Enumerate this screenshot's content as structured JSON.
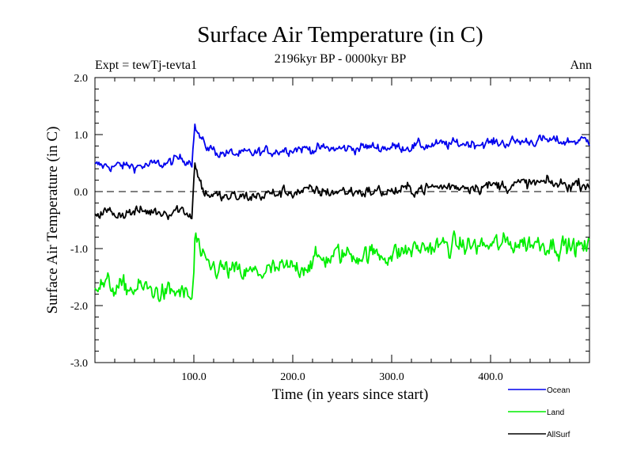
{
  "chart_data": {
    "type": "line",
    "title": "Surface Air Temperature (in C)",
    "subtitle": "2196kyr BP - 0000kyr BP",
    "experiment": "Expt = tewTj-tevta1",
    "period": "Ann",
    "xlabel": "Time (in years since start)",
    "ylabel": "Surface Air Temperature (in C)",
    "xlim": [
      0,
      500
    ],
    "ylim": [
      -3.0,
      2.0
    ],
    "x_ticks": [
      100,
      200,
      300,
      400
    ],
    "x_tick_labels": [
      "100.0",
      "200.0",
      "300.0",
      "400.0"
    ],
    "y_ticks": [
      2.0,
      1.0,
      0.0,
      -1.0,
      -2.0,
      -3.0
    ],
    "y_tick_labels": [
      "2.0",
      "1.0",
      "0.0",
      "-1.0",
      "-2.0",
      "-3.0"
    ],
    "zero_line": 0.0,
    "legend_position": "bottom-right",
    "series": [
      {
        "name": "Ocean",
        "color": "#0000ee",
        "x": [
          0,
          25,
          50,
          75,
          85,
          98,
          100,
          101,
          102,
          110,
          125,
          150,
          175,
          200,
          225,
          250,
          275,
          300,
          325,
          350,
          375,
          400,
          425,
          450,
          475,
          500
        ],
        "values": [
          0.45,
          0.45,
          0.45,
          0.5,
          0.58,
          0.55,
          1.0,
          1.15,
          1.1,
          0.82,
          0.68,
          0.65,
          0.7,
          0.76,
          0.75,
          0.75,
          0.78,
          0.78,
          0.8,
          0.82,
          0.85,
          0.85,
          0.87,
          0.9,
          0.88,
          0.9
        ]
      },
      {
        "name": "Land",
        "color": "#00ee00",
        "x": [
          0,
          25,
          50,
          75,
          85,
          98,
          100,
          101,
          102,
          110,
          125,
          150,
          175,
          200,
          225,
          250,
          275,
          300,
          325,
          350,
          375,
          400,
          425,
          450,
          475,
          500
        ],
        "values": [
          -1.6,
          -1.7,
          -1.7,
          -1.8,
          -1.75,
          -1.9,
          -1.4,
          -0.9,
          -0.8,
          -1.3,
          -1.35,
          -1.45,
          -1.4,
          -1.35,
          -1.2,
          -1.1,
          -1.1,
          -1.1,
          -1.0,
          -0.95,
          -0.95,
          -0.95,
          -0.9,
          -0.9,
          -0.95,
          -1.0
        ]
      },
      {
        "name": "AllSurf",
        "color": "#000000",
        "x": [
          0,
          25,
          50,
          75,
          85,
          98,
          100,
          101,
          102,
          110,
          125,
          150,
          175,
          200,
          225,
          250,
          275,
          300,
          325,
          350,
          375,
          400,
          425,
          450,
          475,
          500
        ],
        "values": [
          -0.35,
          -0.38,
          -0.35,
          -0.35,
          -0.3,
          -0.4,
          0.2,
          0.55,
          0.4,
          0.0,
          -0.1,
          -0.1,
          -0.05,
          0.0,
          0.0,
          0.0,
          0.0,
          0.0,
          0.05,
          0.08,
          0.1,
          0.1,
          0.12,
          0.15,
          0.12,
          0.15
        ]
      }
    ]
  }
}
